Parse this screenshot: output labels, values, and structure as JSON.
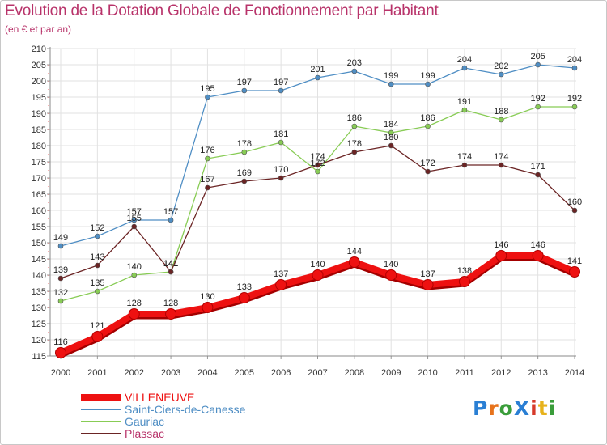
{
  "header": {
    "title": "Evolution de la Dotation Globale de Fonctionnement par Habitant",
    "subtitle": "(en € et par an)"
  },
  "logo": {
    "text": "ProXiti",
    "colors": [
      "#2a7fd4",
      "#e7731c",
      "#3a9d3a",
      "#2a7fd4",
      "#d63a2a",
      "#e7b21c",
      "#3a9d3a"
    ]
  },
  "chart_data": {
    "type": "line",
    "title": "Evolution de la Dotation Globale de Fonctionnement par Habitant",
    "ylabel": "(en € et par an)",
    "xlabel": "",
    "ylim": [
      115,
      210
    ],
    "yticks": [
      115,
      120,
      125,
      130,
      135,
      140,
      145,
      150,
      155,
      160,
      165,
      170,
      175,
      180,
      185,
      190,
      195,
      200,
      205,
      210
    ],
    "categories": [
      "2000",
      "2001",
      "2002",
      "2003",
      "2004",
      "2005",
      "2006",
      "2007",
      "2008",
      "2009",
      "2010",
      "2011",
      "2012",
      "2013",
      "2014"
    ],
    "grid": true,
    "legend": "bottom-left",
    "series": [
      {
        "name": "VILLENEUVE",
        "color": "#ee1111",
        "values": [
          116,
          121,
          128,
          128,
          130,
          133,
          137,
          140,
          144,
          140,
          137,
          138,
          146,
          146,
          141
        ]
      },
      {
        "name": "Saint-Ciers-de-Canesse",
        "color": "#4f8ec4",
        "values": [
          149,
          152,
          157,
          157,
          195,
          197,
          197,
          201,
          203,
          199,
          199,
          204,
          202,
          205,
          204
        ]
      },
      {
        "name": "Gauriac",
        "color": "#88cc55",
        "values": [
          132,
          135,
          140,
          141,
          176,
          178,
          181,
          172,
          186,
          184,
          186,
          191,
          188,
          192,
          192
        ]
      },
      {
        "name": "Plassac",
        "color": "#6b2424",
        "values": [
          139,
          143,
          155,
          141,
          167,
          169,
          170,
          174,
          178,
          180,
          172,
          174,
          174,
          171,
          160
        ]
      }
    ]
  }
}
